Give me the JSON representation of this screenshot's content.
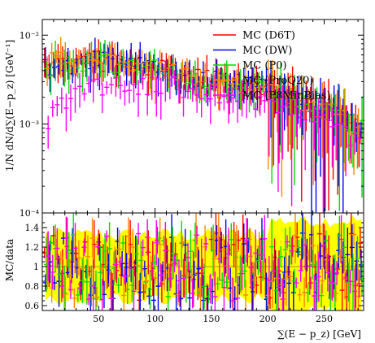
{
  "chart_data": [
    {
      "type": "scatter",
      "panel": "main",
      "ylabel": "1/N dN/d∑(E−p_z) [GeV⁻¹]",
      "yscale": "log",
      "ylim": [
        0.0001,
        0.015
      ],
      "xlim": [
        0,
        285
      ],
      "y_tick_labels": [
        {
          "value": 0.01,
          "label": "10⁻²"
        },
        {
          "value": 0.001,
          "label": "10⁻³"
        },
        {
          "value": 0.0001,
          "label": "10⁻⁴"
        }
      ],
      "legend": {
        "position": "top-right"
      },
      "series": [
        {
          "name": "MC (D6T)",
          "color": "#ff0000"
        },
        {
          "name": "MC (DW)",
          "color": "#0000ff"
        },
        {
          "name": "MC (P0)",
          "color": "#00dd00"
        },
        {
          "name": "MC (ProQ20)",
          "color": "#ff8800"
        },
        {
          "name": "MC (P8MinBias)",
          "color": "#ff00ff"
        }
      ]
    },
    {
      "type": "scatter",
      "panel": "ratio",
      "ylabel": "MC/data",
      "xlabel": "∑(E − p_z) [GeV]",
      "ylim": [
        0.55,
        1.55
      ],
      "xlim": [
        0,
        285
      ],
      "x_tick_labels": [
        "50",
        "100",
        "150",
        "200",
        "250"
      ],
      "y_tick_labels": [
        "0.6",
        "0.8",
        "1",
        "1.2",
        "1.4"
      ],
      "band_color": "#ffff00"
    }
  ]
}
